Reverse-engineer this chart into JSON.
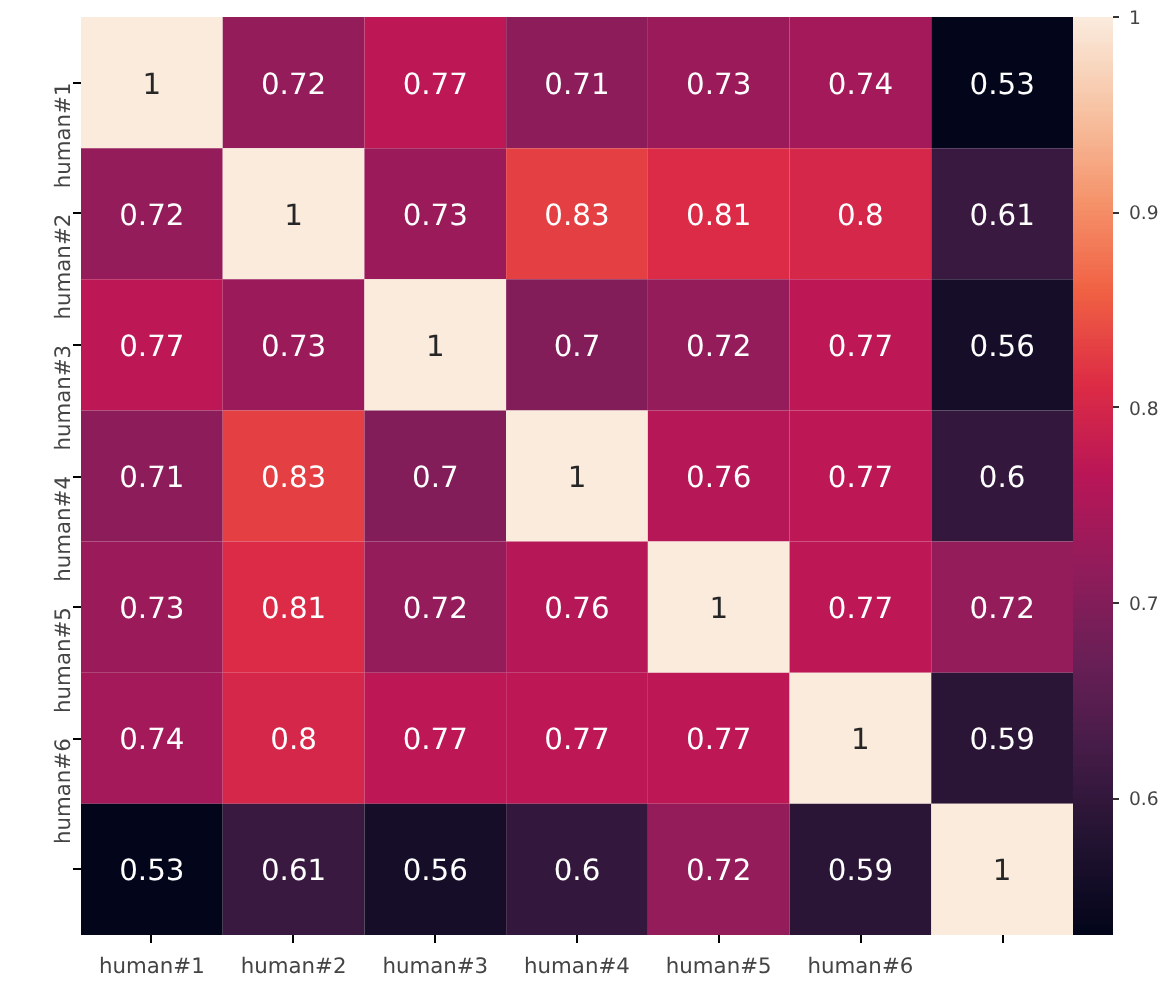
{
  "chart_data": {
    "type": "heatmap",
    "categories": [
      "human#1",
      "human#2",
      "human#3",
      "human#4",
      "human#5",
      "human#6",
      null
    ],
    "y_categories": [
      "human#1",
      "human#2",
      "human#3",
      "human#4",
      "human#5",
      "human#6",
      null
    ],
    "cells": [
      [
        1,
        0.72,
        0.77,
        0.71,
        0.73,
        0.74,
        0.53
      ],
      [
        0.72,
        1,
        0.73,
        0.83,
        0.81,
        0.8,
        0.61
      ],
      [
        0.77,
        0.73,
        1,
        0.7,
        0.72,
        0.77,
        0.56
      ],
      [
        0.71,
        0.83,
        0.7,
        1,
        0.76,
        0.77,
        0.6
      ],
      [
        0.73,
        0.81,
        0.72,
        0.76,
        1,
        0.77,
        0.72
      ],
      [
        0.74,
        0.8,
        0.77,
        0.77,
        0.77,
        1,
        0.59
      ],
      [
        0.53,
        0.61,
        0.56,
        0.6,
        0.72,
        0.59,
        1
      ]
    ],
    "clim": [
      0.53,
      1.0
    ],
    "cticks": [
      0.6,
      0.7,
      0.8,
      0.9,
      1.0
    ],
    "colors": [
      "#03051a",
      "#221331",
      "#451c47",
      "#6a1f56",
      "#921c5b",
      "#b91657",
      "#dd2c45",
      "#f06043",
      "#f5936b",
      "#f7c3a3",
      "#faebdd"
    ],
    "data_labels": true
  }
}
